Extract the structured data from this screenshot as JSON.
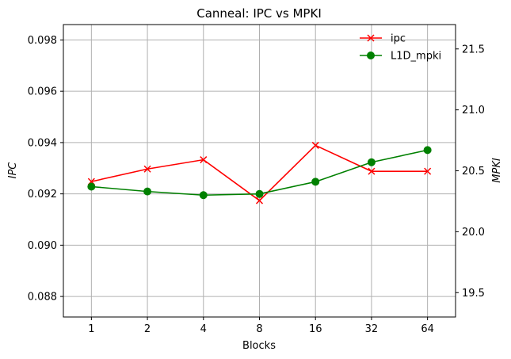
{
  "chart_data": {
    "type": "line",
    "title": "Canneal: IPC vs MPKI",
    "xlabel": "Blocks",
    "ylabel_left": "IPC",
    "ylabel_right": "MPKI",
    "categories": [
      "1",
      "2",
      "4",
      "8",
      "16",
      "32",
      "64"
    ],
    "ylim_left": [
      0.0872,
      0.0986
    ],
    "ylim_right": [
      19.3,
      21.7
    ],
    "yticks_left": [
      "0.088",
      "0.090",
      "0.092",
      "0.094",
      "0.096",
      "0.098"
    ],
    "yticks_right": [
      "19.5",
      "20.0",
      "20.5",
      "21.0",
      "21.5"
    ],
    "grid": true,
    "legend_position": "top-right",
    "series": [
      {
        "name": "ipc",
        "axis": "left",
        "color": "#ff0000",
        "marker": "x",
        "values": [
          0.09248,
          0.09297,
          0.09333,
          0.09174,
          0.09389,
          0.09288,
          0.09288
        ]
      },
      {
        "name": "L1D_mpki",
        "axis": "right",
        "color": "#008000",
        "marker": "circle",
        "values": [
          20.37,
          20.33,
          20.3,
          20.31,
          20.41,
          20.57,
          20.67
        ]
      }
    ]
  }
}
